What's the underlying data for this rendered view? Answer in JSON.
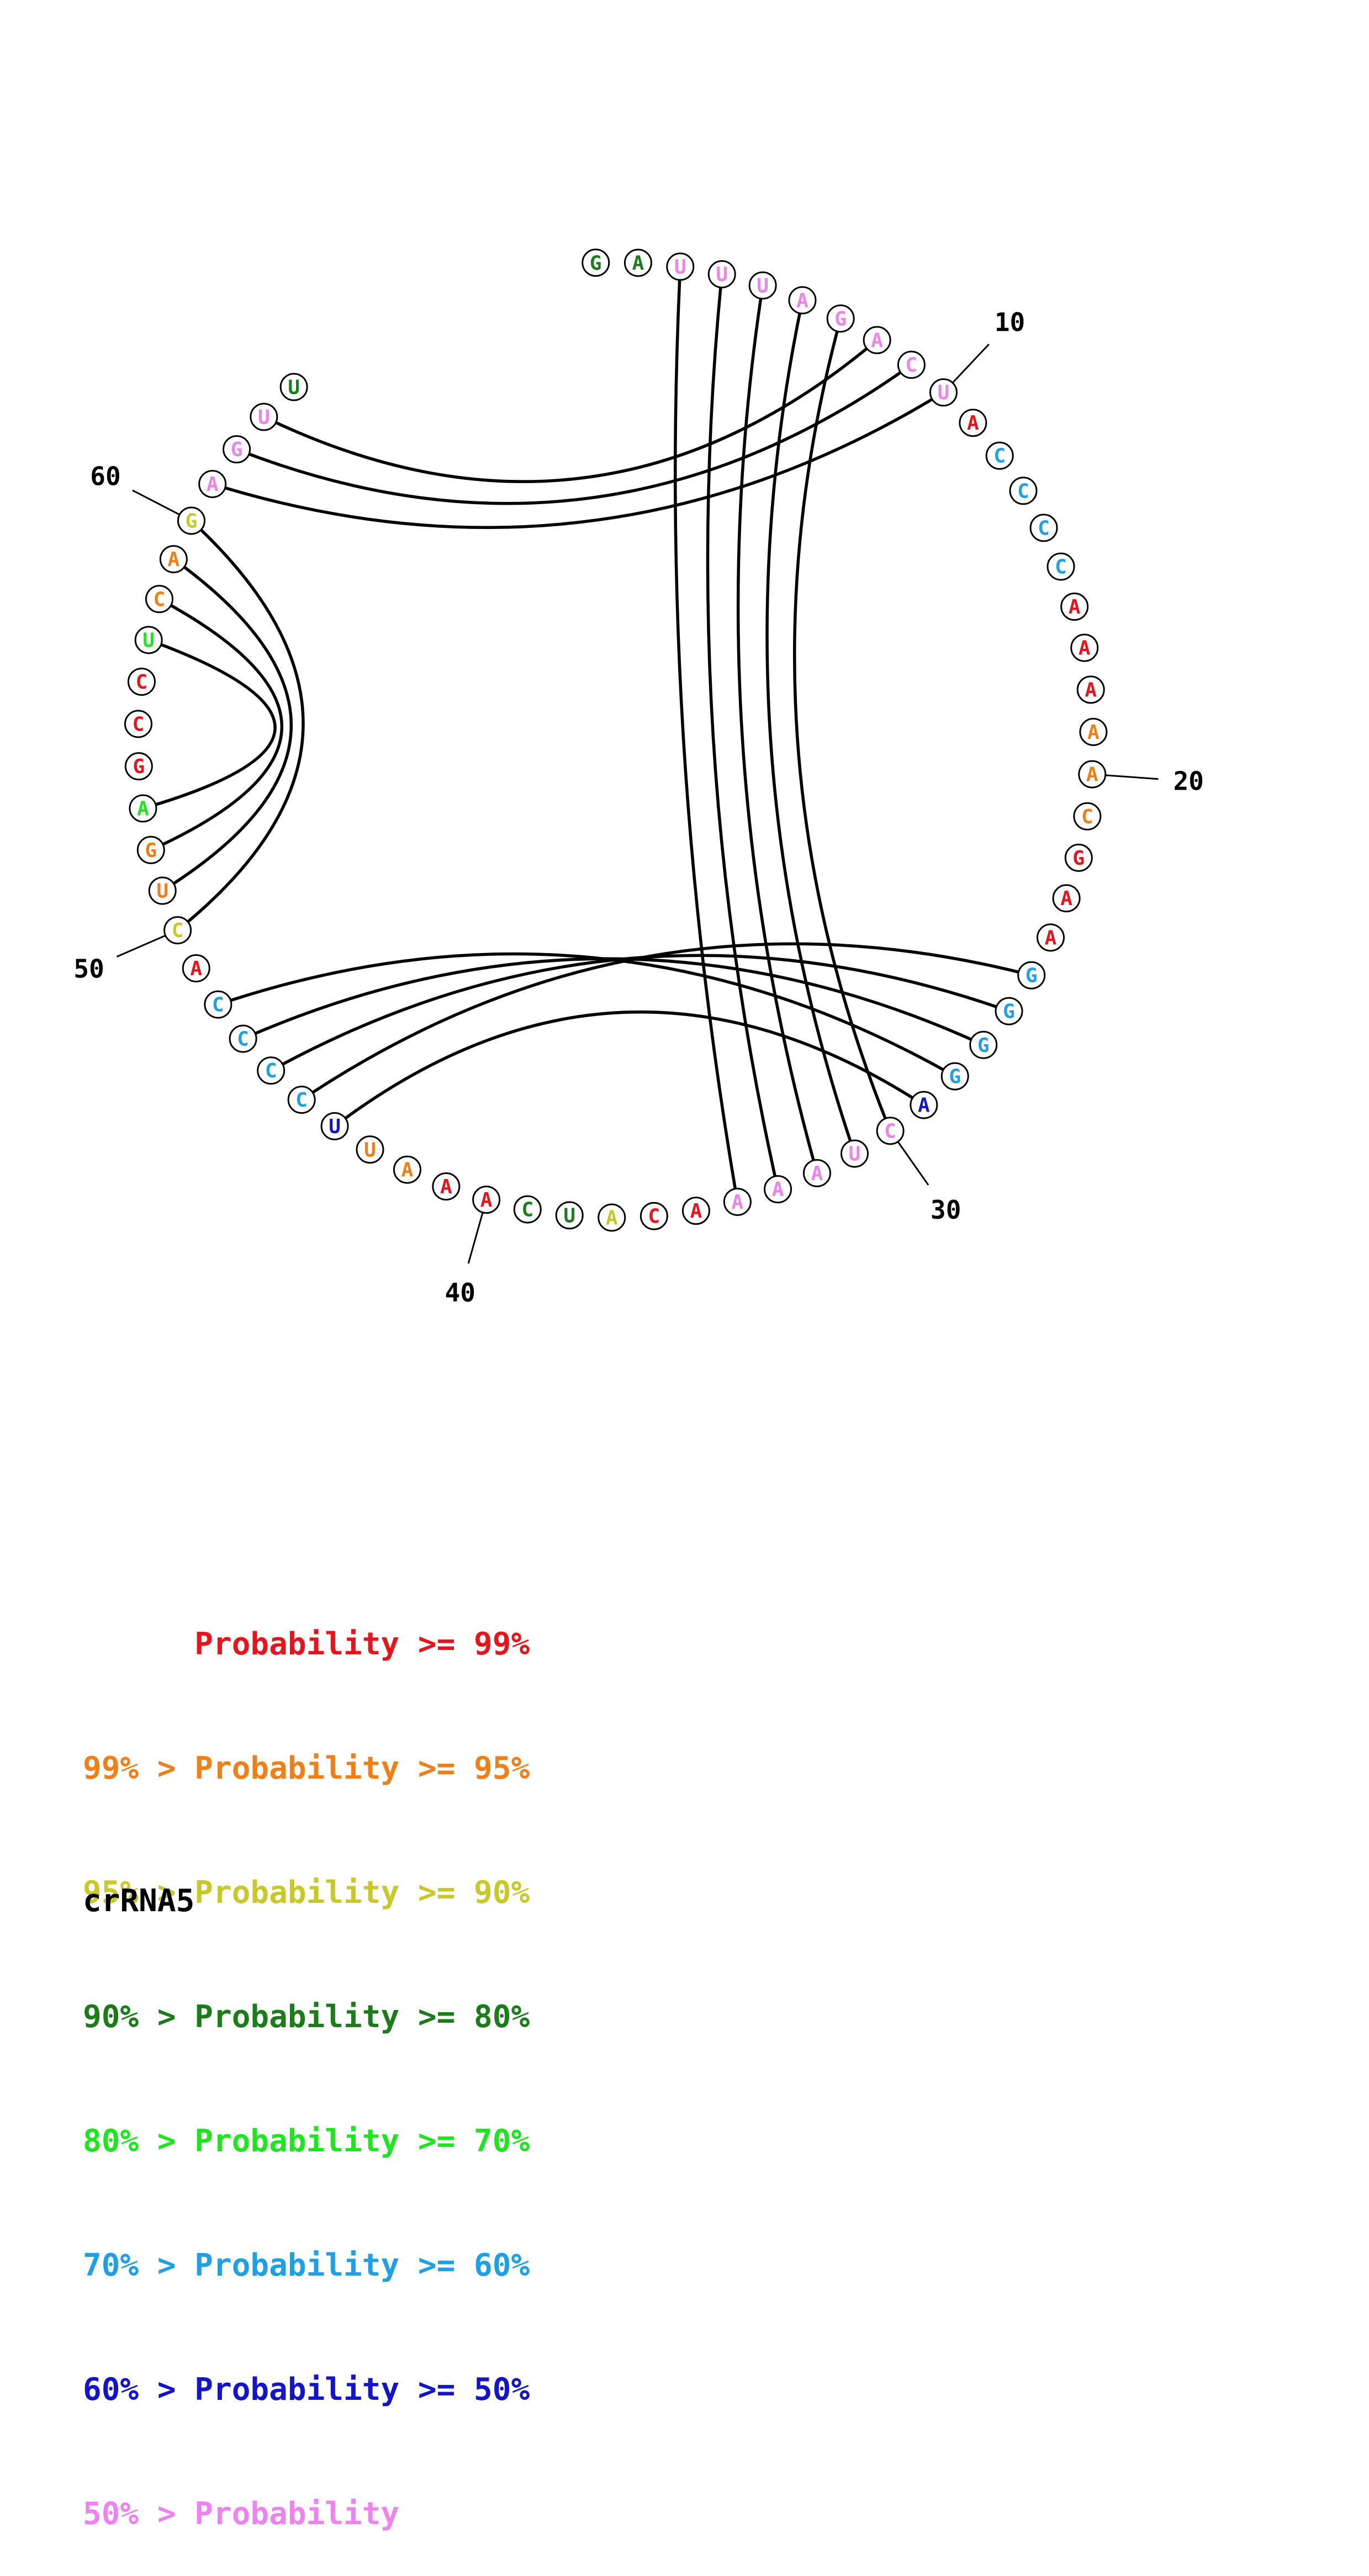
{
  "sequence_name": "crRNA5",
  "colors": {
    "p99": "#e8141c",
    "p95": "#f07f18",
    "p90": "#c8c828",
    "p80": "#1a7d1a",
    "p70": "#1ee61e",
    "p60": "#1ea0e6",
    "p50": "#1414c8",
    "plt50": "#ee82ee",
    "outline": "#000000"
  },
  "nucleotides": [
    {
      "n": 1,
      "base": "G",
      "p": "p80"
    },
    {
      "n": 2,
      "base": "A",
      "p": "p80"
    },
    {
      "n": 3,
      "base": "U",
      "p": "plt50"
    },
    {
      "n": 4,
      "base": "U",
      "p": "plt50"
    },
    {
      "n": 5,
      "base": "U",
      "p": "plt50"
    },
    {
      "n": 6,
      "base": "A",
      "p": "plt50"
    },
    {
      "n": 7,
      "base": "G",
      "p": "plt50"
    },
    {
      "n": 8,
      "base": "A",
      "p": "plt50"
    },
    {
      "n": 9,
      "base": "C",
      "p": "plt50"
    },
    {
      "n": 10,
      "base": "U",
      "p": "plt50"
    },
    {
      "n": 11,
      "base": "A",
      "p": "p99"
    },
    {
      "n": 12,
      "base": "C",
      "p": "p60"
    },
    {
      "n": 13,
      "base": "C",
      "p": "p60"
    },
    {
      "n": 14,
      "base": "C",
      "p": "p60"
    },
    {
      "n": 15,
      "base": "C",
      "p": "p60"
    },
    {
      "n": 16,
      "base": "A",
      "p": "p99"
    },
    {
      "n": 17,
      "base": "A",
      "p": "p99"
    },
    {
      "n": 18,
      "base": "A",
      "p": "p99"
    },
    {
      "n": 19,
      "base": "A",
      "p": "p95"
    },
    {
      "n": 20,
      "base": "A",
      "p": "p95"
    },
    {
      "n": 21,
      "base": "C",
      "p": "p95"
    },
    {
      "n": 22,
      "base": "G",
      "p": "p99"
    },
    {
      "n": 23,
      "base": "A",
      "p": "p99"
    },
    {
      "n": 24,
      "base": "A",
      "p": "p99"
    },
    {
      "n": 25,
      "base": "G",
      "p": "p60"
    },
    {
      "n": 26,
      "base": "G",
      "p": "p60"
    },
    {
      "n": 27,
      "base": "G",
      "p": "p60"
    },
    {
      "n": 28,
      "base": "G",
      "p": "p60"
    },
    {
      "n": 29,
      "base": "A",
      "p": "p50"
    },
    {
      "n": 30,
      "base": "C",
      "p": "plt50"
    },
    {
      "n": 31,
      "base": "U",
      "p": "plt50"
    },
    {
      "n": 32,
      "base": "A",
      "p": "plt50"
    },
    {
      "n": 33,
      "base": "A",
      "p": "plt50"
    },
    {
      "n": 34,
      "base": "A",
      "p": "plt50"
    },
    {
      "n": 35,
      "base": "A",
      "p": "p99"
    },
    {
      "n": 36,
      "base": "C",
      "p": "p99"
    },
    {
      "n": 37,
      "base": "A",
      "p": "p90"
    },
    {
      "n": 38,
      "base": "U",
      "p": "p80"
    },
    {
      "n": 39,
      "base": "C",
      "p": "p80"
    },
    {
      "n": 40,
      "base": "A",
      "p": "p99"
    },
    {
      "n": 41,
      "base": "A",
      "p": "p99"
    },
    {
      "n": 42,
      "base": "A",
      "p": "p95"
    },
    {
      "n": 43,
      "base": "U",
      "p": "p95"
    },
    {
      "n": 44,
      "base": "U",
      "p": "p50"
    },
    {
      "n": 45,
      "base": "C",
      "p": "p60"
    },
    {
      "n": 46,
      "base": "C",
      "p": "p60"
    },
    {
      "n": 47,
      "base": "C",
      "p": "p60"
    },
    {
      "n": 48,
      "base": "C",
      "p": "p60"
    },
    {
      "n": 49,
      "base": "A",
      "p": "p99"
    },
    {
      "n": 50,
      "base": "C",
      "p": "p90"
    },
    {
      "n": 51,
      "base": "U",
      "p": "p95"
    },
    {
      "n": 52,
      "base": "G",
      "p": "p95"
    },
    {
      "n": 53,
      "base": "A",
      "p": "p70"
    },
    {
      "n": 54,
      "base": "G",
      "p": "p99"
    },
    {
      "n": 55,
      "base": "C",
      "p": "p99"
    },
    {
      "n": 56,
      "base": "C",
      "p": "p99"
    },
    {
      "n": 57,
      "base": "U",
      "p": "p70"
    },
    {
      "n": 58,
      "base": "C",
      "p": "p95"
    },
    {
      "n": 59,
      "base": "A",
      "p": "p95"
    },
    {
      "n": 60,
      "base": "G",
      "p": "p90"
    },
    {
      "n": 61,
      "base": "A",
      "p": "plt50"
    },
    {
      "n": 62,
      "base": "G",
      "p": "plt50"
    },
    {
      "n": 63,
      "base": "U",
      "p": "plt50"
    },
    {
      "n": 64,
      "base": "U",
      "p": "p80"
    }
  ],
  "pairs": [
    [
      3,
      34
    ],
    [
      4,
      33
    ],
    [
      5,
      32
    ],
    [
      6,
      31
    ],
    [
      7,
      30
    ],
    [
      8,
      63
    ],
    [
      9,
      62
    ],
    [
      10,
      61
    ],
    [
      25,
      45
    ],
    [
      26,
      46
    ],
    [
      27,
      47
    ],
    [
      28,
      48
    ],
    [
      29,
      44
    ],
    [
      50,
      60
    ],
    [
      51,
      59
    ],
    [
      52,
      58
    ],
    [
      53,
      57
    ]
  ],
  "position_labels": [
    {
      "n": 10,
      "text": "10"
    },
    {
      "n": 20,
      "text": "20"
    },
    {
      "n": 30,
      "text": "30"
    },
    {
      "n": 40,
      "text": "40"
    },
    {
      "n": 50,
      "text": "50"
    },
    {
      "n": 60,
      "text": "60"
    }
  ],
  "legend": [
    {
      "text": "      Probability >= 99%",
      "color_key": "p99"
    },
    {
      "text": "99% > Probability >= 95%",
      "color_key": "p95"
    },
    {
      "text": "95% > Probability >= 90%",
      "color_key": "p90"
    },
    {
      "text": "90% > Probability >= 80%",
      "color_key": "p80"
    },
    {
      "text": "80% > Probability >= 70%",
      "color_key": "p70"
    },
    {
      "text": "70% > Probability >= 60%",
      "color_key": "p60"
    },
    {
      "text": "60% > Probability >= 50%",
      "color_key": "p50"
    },
    {
      "text": "50% > Probability",
      "color_key": "plt50"
    }
  ]
}
